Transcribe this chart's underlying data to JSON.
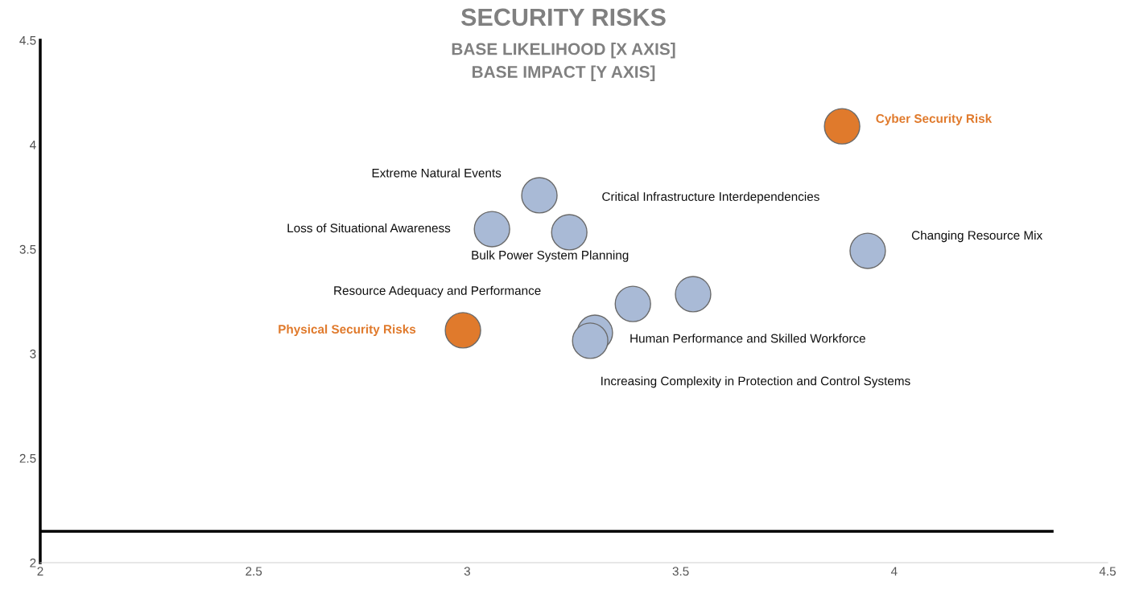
{
  "chart_data": {
    "type": "scatter",
    "title": "SECURITY RISKS",
    "subtitle": "BASE LIKELIHOOD [X AXIS]\nBASE IMPACT [Y AXIS]",
    "x": [
      3.878,
      3.169,
      3.239,
      3.058,
      3.938,
      3.529,
      3.388,
      2.99,
      3.299,
      3.288
    ],
    "values": [
      4.088,
      3.758,
      3.581,
      3.596,
      3.492,
      3.285,
      3.238,
      3.112,
      3.1,
      3.062
    ],
    "colors": [
      "#e07a2c",
      "#a9bad6",
      "#a9bad6",
      "#a9bad6",
      "#a9bad6",
      "#a9bad6",
      "#a9bad6",
      "#e07a2c",
      "#a9bad6",
      "#a9bad6"
    ],
    "annotations": [
      "Cyber Security Risk",
      "Extreme Natural Events",
      "Critical Infrastructure Interdependencies",
      "Loss of Situational Awareness",
      "Changing Resource Mix",
      "Bulk Power System Planning",
      "Resource Adequacy and Performance",
      "Physical Security Risks",
      "Human Performance and Skilled Workforce",
      "Increasing Complexity in Protection and Control Systems"
    ],
    "ref_lines": [
      {
        "axis": "y",
        "value": 2.15,
        "color": "#000000"
      }
    ],
    "xlim": [
      2,
      4.5
    ],
    "xticks": [
      2,
      2.5,
      3,
      3.5,
      4,
      4.5
    ],
    "ylim": [
      2,
      4.5
    ],
    "yticks": [
      2,
      2.5,
      3,
      3.5,
      4,
      4.5
    ],
    "marker": "circle",
    "grid": false,
    "legend": false
  }
}
